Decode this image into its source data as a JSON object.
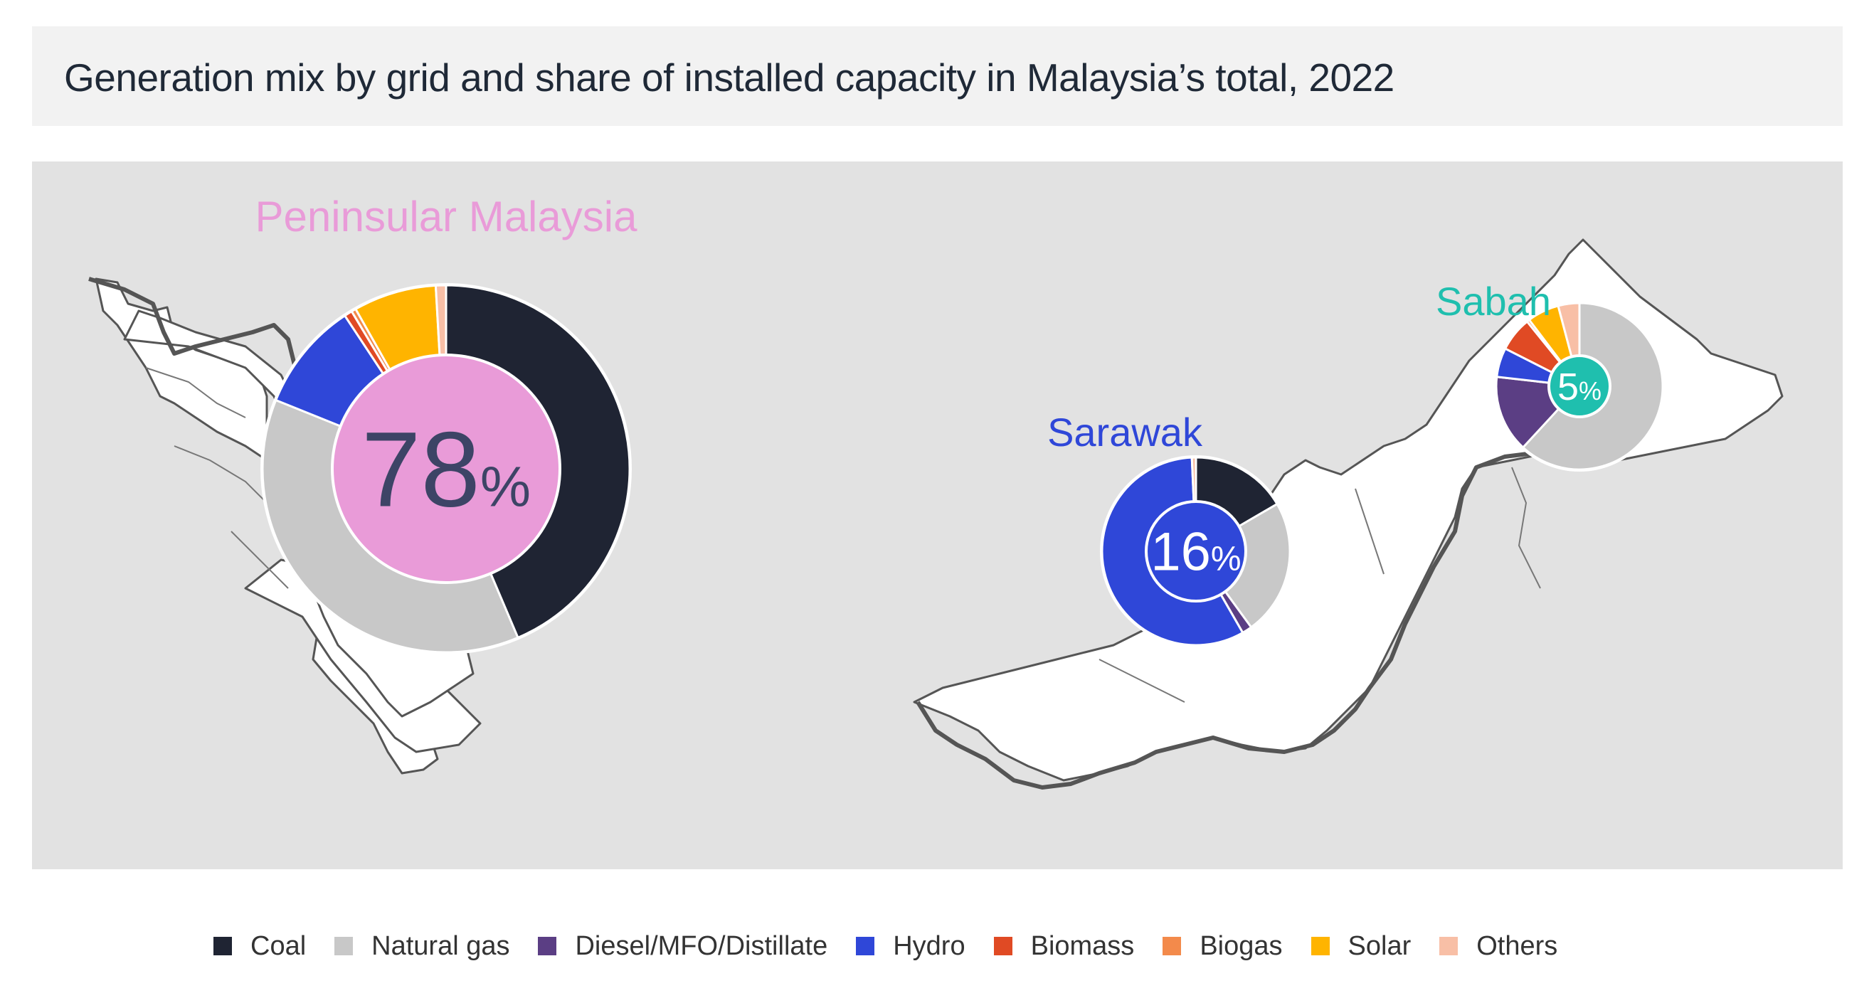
{
  "header": {
    "title": "Generation mix by grid and share of installed capacity in Malaysia’s total, 2022"
  },
  "legend": [
    {
      "label": "Coal",
      "color": "#1f2433"
    },
    {
      "label": "Natural gas",
      "color": "#c8c8c8"
    },
    {
      "label": "Diesel/MFO/Distillate",
      "color": "#5b3e84"
    },
    {
      "label": "Hydro",
      "color": "#2f47d8"
    },
    {
      "label": "Biomass",
      "color": "#e04a24"
    },
    {
      "label": "Biogas",
      "color": "#f38a4b"
    },
    {
      "label": "Solar",
      "color": "#ffb400"
    },
    {
      "label": "Others",
      "color": "#f8bfa6"
    }
  ],
  "chart_data": [
    {
      "type": "pie",
      "title": "Peninsular Malaysia",
      "title_color": "#e99bd8",
      "center_value": "78",
      "center_unit": "%",
      "center_color": "#e99bd8",
      "categories": [
        "Coal",
        "Natural gas",
        "Diesel/MFO/Distillate",
        "Hydro",
        "Biomass",
        "Biogas",
        "Solar",
        "Others"
      ],
      "values": [
        43.6,
        37.5,
        0.0,
        9.6,
        0.7,
        0.4,
        7.3,
        0.9
      ]
    },
    {
      "type": "pie",
      "title": "Sarawak",
      "title_color": "#2f47d8",
      "center_value": "16",
      "center_unit": "%",
      "center_color": "#2f47d8",
      "categories": [
        "Coal",
        "Natural gas",
        "Diesel/MFO/Distillate",
        "Hydro",
        "Biomass",
        "Biogas",
        "Solar",
        "Others"
      ],
      "values": [
        16.6,
        23.4,
        1.7,
        57.6,
        0.0,
        0.0,
        0.0,
        0.7
      ]
    },
    {
      "type": "pie",
      "title": "Sabah",
      "title_color": "#1fbfae",
      "center_value": "5",
      "center_unit": "%",
      "center_color": "#1fbfae",
      "categories": [
        "Coal",
        "Natural gas",
        "Diesel/MFO/Distillate",
        "Hydro",
        "Biomass",
        "Biogas",
        "Solar",
        "Others"
      ],
      "values": [
        0.0,
        60.0,
        14.5,
        5.5,
        6.5,
        0.5,
        6.0,
        4.0
      ]
    }
  ]
}
